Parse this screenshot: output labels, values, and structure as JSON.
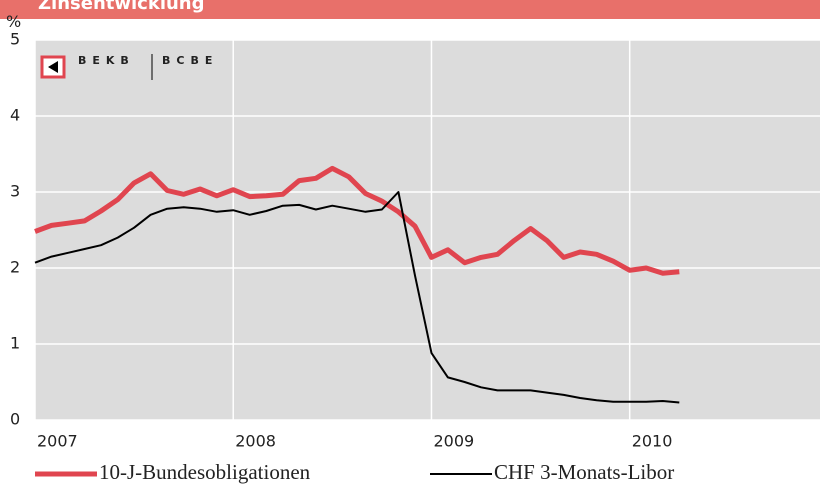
{
  "chart_data": {
    "type": "line",
    "title": "Zinsentwicklung",
    "y_label": "%",
    "logo_left": "BEKB",
    "logo_right": "BCBE",
    "x": [
      2007.0,
      2007.083,
      2007.167,
      2007.25,
      2007.333,
      2007.417,
      2007.5,
      2007.583,
      2007.667,
      2007.75,
      2007.833,
      2007.917,
      2008.0,
      2008.083,
      2008.167,
      2008.25,
      2008.333,
      2008.417,
      2008.5,
      2008.583,
      2008.667,
      2008.75,
      2008.833,
      2008.917,
      2009.0,
      2009.083,
      2009.167,
      2009.25,
      2009.333,
      2009.417,
      2009.5,
      2009.583,
      2009.667,
      2009.75,
      2009.833,
      2009.917,
      2010.0,
      2010.083,
      2010.167,
      2010.25
    ],
    "series": [
      {
        "name": "10-J-Bundesobligationen",
        "color": "#e0454f",
        "values": [
          2.48,
          2.56,
          2.59,
          2.62,
          2.75,
          2.9,
          3.12,
          3.24,
          3.02,
          2.97,
          3.04,
          2.95,
          3.03,
          2.94,
          2.95,
          2.97,
          3.15,
          3.18,
          3.31,
          3.2,
          2.98,
          2.88,
          2.74,
          2.55,
          2.14,
          2.24,
          2.07,
          2.14,
          2.18,
          2.36,
          2.52,
          2.36,
          2.14,
          2.21,
          2.18,
          2.09,
          1.97,
          2.0,
          1.93,
          1.95
        ]
      },
      {
        "name": "CHF 3-Monats-Libor",
        "color": "#000000",
        "values": [
          2.07,
          2.15,
          2.2,
          2.25,
          2.3,
          2.4,
          2.53,
          2.7,
          2.78,
          2.8,
          2.78,
          2.74,
          2.76,
          2.7,
          2.75,
          2.82,
          2.83,
          2.77,
          2.82,
          2.78,
          2.74,
          2.77,
          3.0,
          1.9,
          0.88,
          0.56,
          0.5,
          0.43,
          0.39,
          0.39,
          0.39,
          0.36,
          0.33,
          0.29,
          0.26,
          0.24,
          0.24,
          0.24,
          0.25,
          0.23
        ]
      }
    ],
    "xlim": [
      2007,
      2010.96
    ],
    "xticks": [
      2007,
      2008,
      2009,
      2010
    ],
    "ylim": [
      0,
      5
    ],
    "yticks": [
      0,
      1,
      2,
      3,
      4,
      5
    ],
    "grid": true
  }
}
